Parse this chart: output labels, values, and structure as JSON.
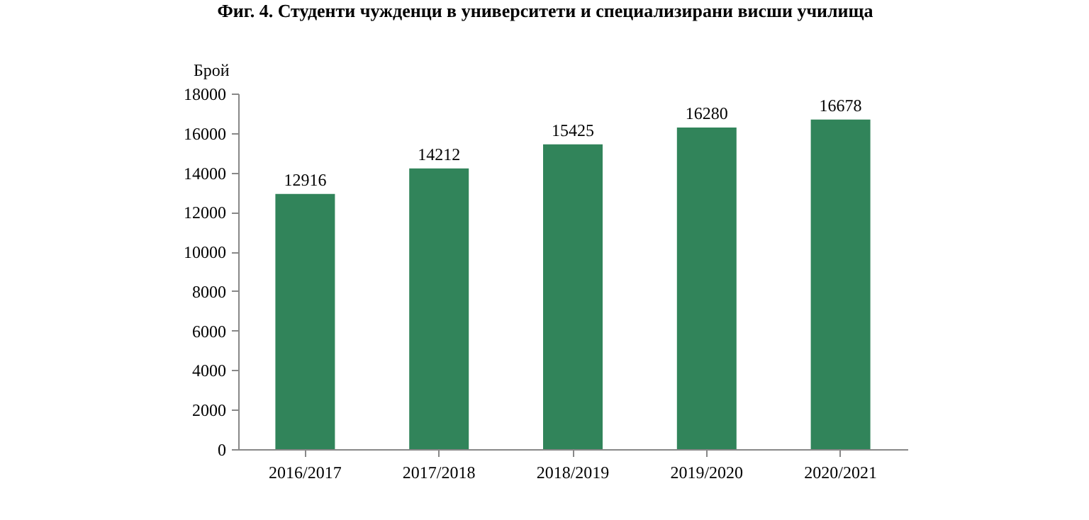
{
  "chart_data": {
    "type": "bar",
    "title": "Фиг. 4. Студенти чужденци в университети и специализирани висши училища",
    "ylabel": "Брой",
    "categories": [
      "2016/2017",
      "2017/2018",
      "2018/2019",
      "2019/2020",
      "2020/2021"
    ],
    "values": [
      12916,
      14212,
      15425,
      16280,
      16678
    ],
    "color": "#31845a",
    "ylim": [
      0,
      18000
    ],
    "yticks": [
      0,
      2000,
      4000,
      6000,
      8000,
      10000,
      12000,
      14000,
      16000,
      18000
    ],
    "data_labels": true,
    "grid": false
  }
}
